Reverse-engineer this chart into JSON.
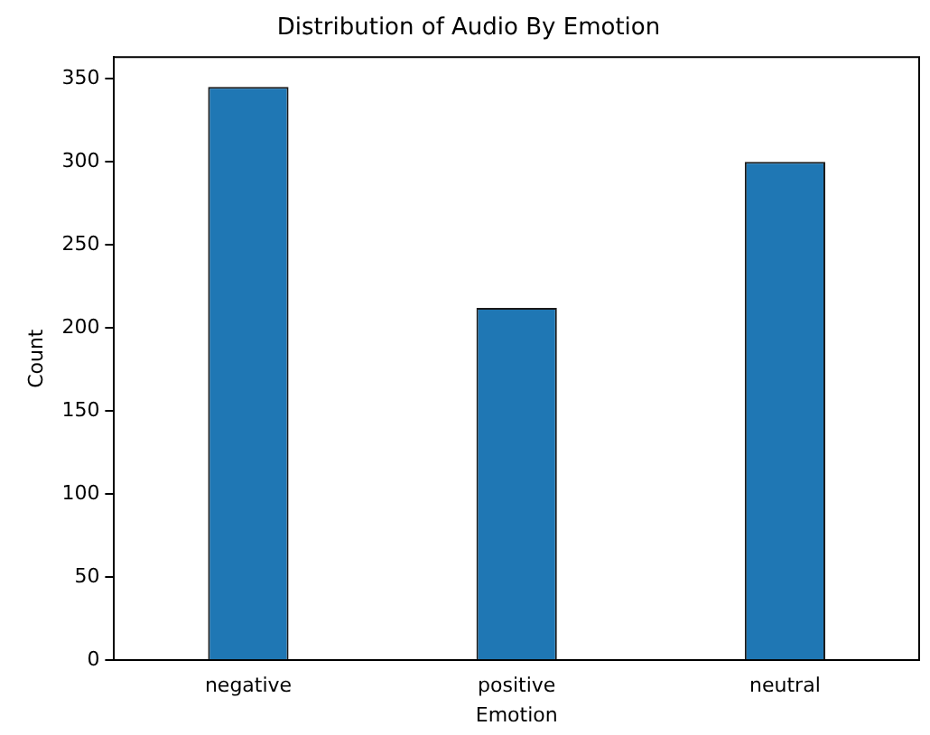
{
  "chart_data": {
    "type": "bar",
    "title": "Distribution of Audio By Emotion",
    "xlabel": "Emotion",
    "ylabel": "Count",
    "categories": [
      "negative",
      "positive",
      "neutral"
    ],
    "values": [
      345,
      212,
      300
    ],
    "color": "#1f77b4",
    "ylim": [
      0,
      363
    ],
    "yticks": [
      0,
      50,
      100,
      150,
      200,
      250,
      300,
      350
    ],
    "grid": false,
    "legend": false
  }
}
